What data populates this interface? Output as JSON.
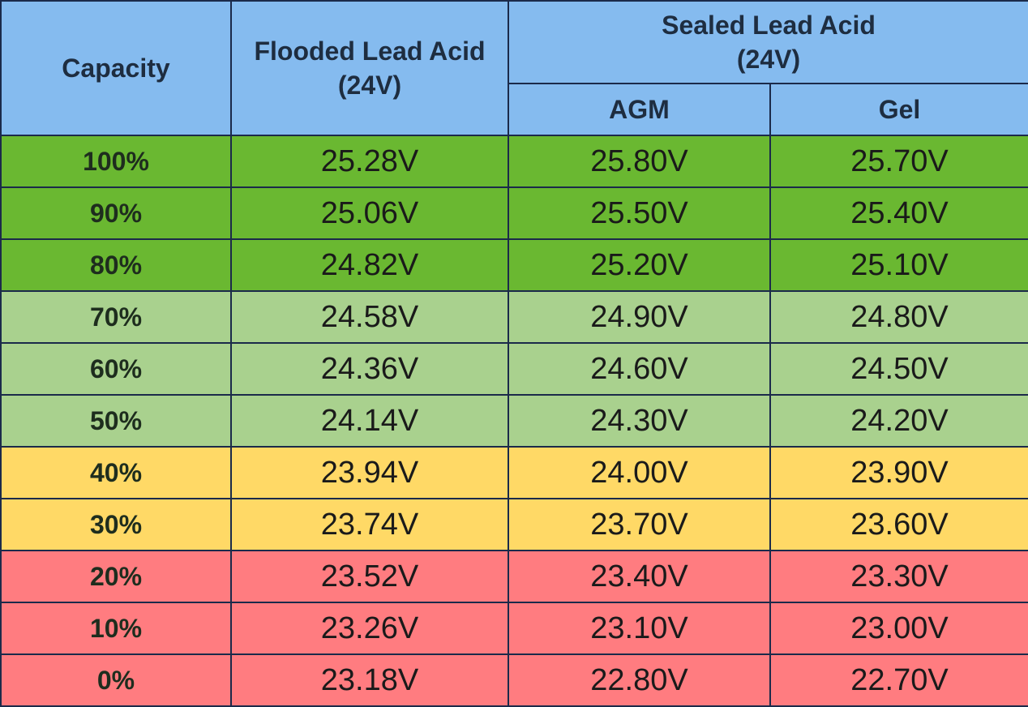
{
  "table": {
    "headers": {
      "capacity": "Capacity",
      "flooded": "Flooded Lead Acid\n(24V)",
      "sealed": "Sealed Lead Acid\n(24V)",
      "agm": "AGM",
      "gel": "Gel"
    },
    "rows": [
      [
        "100%",
        "25.28V",
        "25.80V",
        "25.70V"
      ],
      [
        "90%",
        "25.06V",
        "25.50V",
        "25.40V"
      ],
      [
        "80%",
        "24.82V",
        "25.20V",
        "25.10V"
      ],
      [
        "70%",
        "24.58V",
        "24.90V",
        "24.80V"
      ],
      [
        "60%",
        "24.36V",
        "24.60V",
        "24.50V"
      ],
      [
        "50%",
        "24.14V",
        "24.30V",
        "24.20V"
      ],
      [
        "40%",
        "23.94V",
        "24.00V",
        "23.90V"
      ],
      [
        "30%",
        "23.74V",
        "23.70V",
        "23.60V"
      ],
      [
        "20%",
        "23.52V",
        "23.40V",
        "23.30V"
      ],
      [
        "10%",
        "23.26V",
        "23.10V",
        "23.00V"
      ],
      [
        "0%",
        "23.18V",
        "22.80V",
        "22.70V"
      ]
    ]
  }
}
